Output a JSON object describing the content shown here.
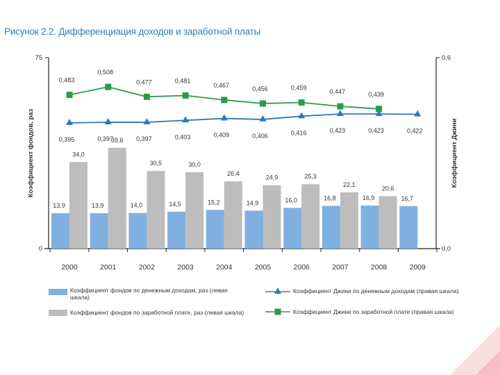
{
  "figure_title": "Рисунок 2.2. Дифференциация доходов и заработной платы",
  "chart_data": {
    "type": "bar",
    "title": "Рисунок 2.2. Дифференциация доходов и заработной платы",
    "categories": [
      "2000",
      "2001",
      "2002",
      "2003",
      "2004",
      "2005",
      "2006",
      "2007",
      "2008",
      "2009"
    ],
    "left_axis": {
      "label": "Коэффициент фондов, раз",
      "range": [
        0,
        75
      ],
      "ticks": [
        "0",
        "75"
      ]
    },
    "right_axis": {
      "label": "Коэффициент Джини",
      "range": [
        0.0,
        0.6
      ],
      "ticks": [
        "0,0",
        "0,6"
      ]
    },
    "series": [
      {
        "name": "Коэффициент фондов по денежным доходам, раз (левая шкала)",
        "type": "bar",
        "axis": "left",
        "color": "#7fb0e0",
        "values": [
          13.9,
          13.9,
          14.0,
          14.5,
          15.2,
          14.9,
          16.0,
          16.8,
          16.9,
          16.7
        ],
        "labels": [
          "13,9",
          "13,9",
          "14,0",
          "14,5",
          "15,2",
          "14,9",
          "16,0",
          "16,8",
          "16,9",
          "16,7"
        ]
      },
      {
        "name": "Коэффициент фондов по заработной плате, раз (левая шкала)",
        "type": "bar",
        "axis": "left",
        "color": "#bdbdbd",
        "values": [
          34.0,
          39.6,
          30.5,
          30.0,
          26.4,
          24.9,
          25.3,
          22.1,
          20.6,
          null
        ],
        "labels": [
          "34,0",
          "39,6",
          "30,5",
          "30,0",
          "26,4",
          "24,9",
          "25,3",
          "22,1",
          "20,6",
          ""
        ]
      },
      {
        "name": "Коэффициент Джини по денежным доходам (правая шкала)",
        "type": "line",
        "axis": "right",
        "marker": "triangle",
        "color": "#2b7bb9",
        "values": [
          0.395,
          0.397,
          0.397,
          0.403,
          0.409,
          0.406,
          0.416,
          0.423,
          0.423,
          0.422
        ],
        "labels": [
          "0,395",
          "0,397",
          "0,397",
          "0,403",
          "0,409",
          "0,406",
          "0,416",
          "0,423",
          "0,423",
          "0,422"
        ]
      },
      {
        "name": "Коэффициент Джини по заработной плате (правая шкала)",
        "type": "line",
        "axis": "right",
        "marker": "square",
        "color": "#2e9a47",
        "values": [
          0.483,
          0.508,
          0.477,
          0.481,
          0.467,
          0.456,
          0.459,
          0.447,
          0.439,
          null
        ],
        "labels": [
          "0,483",
          "0,508",
          "0,477",
          "0,481",
          "0,467",
          "0,456",
          "0,459",
          "0,447",
          "0,439",
          ""
        ]
      }
    ]
  },
  "colors": {
    "title": "#2f7fb8",
    "axis": "#222222",
    "label_text": "#333333",
    "decoration": "#f3b3b3"
  }
}
